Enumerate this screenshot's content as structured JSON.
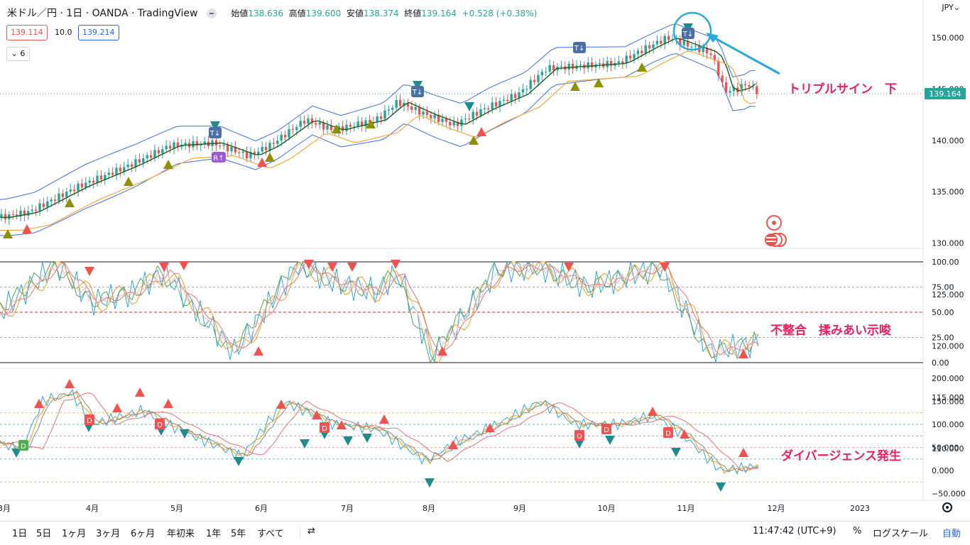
{
  "header": {
    "symbol": "米ドル／円 · 1日 · OANDA · TradingView",
    "ohlc": [
      {
        "label": "始値",
        "value": "138.636"
      },
      {
        "label": "高値",
        "value": "139.600"
      },
      {
        "label": "安値",
        "value": "138.374"
      },
      {
        "label": "終値",
        "value": "139.164"
      }
    ],
    "change": "+0.528 (+0.38%)",
    "bid": "139.114",
    "spread": "10.0",
    "ask": "139.214",
    "collapse_count": "6"
  },
  "currency": "JPY",
  "current_price": "139.164",
  "price_axis": [
    "150.000",
    "145.000",
    "140.000",
    "135.000",
    "130.000",
    "125.000",
    "120.000",
    "115.000",
    "110.000"
  ],
  "osc1_axis": [
    "100.00",
    "75.00",
    "50.00",
    "25.00",
    "0.00"
  ],
  "osc2_axis": [
    "200.000",
    "150.000",
    "100.000",
    "50.000",
    "0.000",
    "−50.000"
  ],
  "time_axis": [
    "3月",
    "4月",
    "5月",
    "6月",
    "7月",
    "8月",
    "9月",
    "10月",
    "11月",
    "12月",
    "2023"
  ],
  "annotations": {
    "triple_sign": "トリプルサイン　下",
    "mismatch": "不整合　揉みあい示唆",
    "divergence": "ダイバージェンス発生"
  },
  "badges": {
    "t": "T",
    "r": "R",
    "d": "D"
  },
  "bottom": {
    "ranges": [
      "1日",
      "5日",
      "1ヶ月",
      "3ヶ月",
      "6ヶ月",
      "年初来",
      "1年",
      "5年",
      "すべて"
    ],
    "time": "11:47:42 (UTC+9)",
    "percent": "%",
    "log": "ログスケール",
    "auto": "自動"
  },
  "colors": {
    "up": "#26a69a",
    "down": "#ef5350",
    "accent": "#2962ff",
    "annot": "#e91e63",
    "band": "#3b6fe0"
  }
}
